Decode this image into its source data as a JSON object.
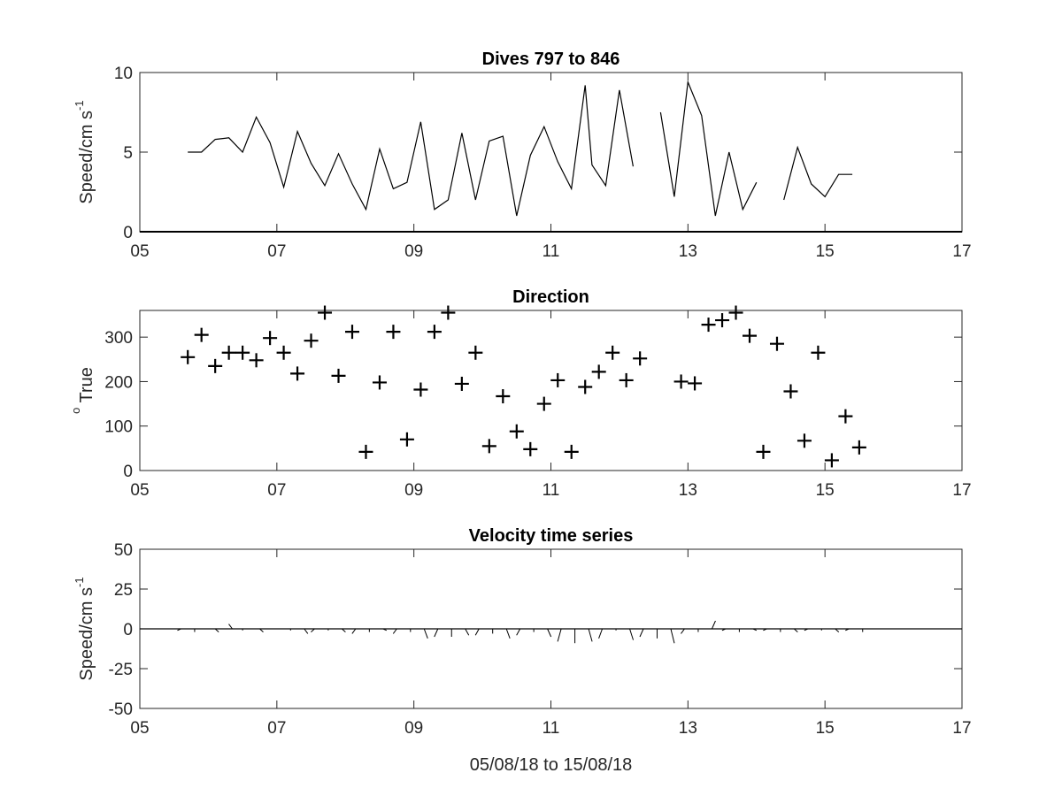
{
  "chart_data": [
    {
      "type": "line",
      "title": "Dives 797 to 846",
      "ylabel": "Speed/cm s",
      "ylabel_sup": "-1",
      "xlim": [
        5,
        17
      ],
      "ylim": [
        0,
        10
      ],
      "xticks": [
        "05",
        "07",
        "09",
        "11",
        "13",
        "15",
        "17"
      ],
      "yticks": [
        "0",
        "5",
        "10"
      ],
      "series": [
        {
          "segments": [
            [
              [
                5.7,
                5.0
              ],
              [
                5.9,
                5.0
              ],
              [
                6.1,
                5.8
              ],
              [
                6.3,
                5.9
              ],
              [
                6.5,
                5.0
              ],
              [
                6.7,
                7.2
              ],
              [
                6.9,
                5.6
              ],
              [
                7.1,
                2.8
              ],
              [
                7.3,
                6.3
              ],
              [
                7.5,
                4.3
              ],
              [
                7.7,
                2.9
              ],
              [
                7.9,
                4.9
              ],
              [
                8.1,
                3.0
              ],
              [
                8.3,
                1.4
              ],
              [
                8.5,
                5.2
              ],
              [
                8.7,
                2.7
              ],
              [
                8.9,
                3.1
              ],
              [
                9.1,
                6.9
              ],
              [
                9.3,
                1.4
              ],
              [
                9.5,
                2.0
              ],
              [
                9.7,
                6.2
              ],
              [
                9.9,
                2.0
              ],
              [
                10.1,
                5.7
              ],
              [
                10.3,
                6.0
              ],
              [
                10.5,
                1.0
              ],
              [
                10.7,
                4.8
              ],
              [
                10.9,
                6.6
              ],
              [
                11.1,
                4.4
              ],
              [
                11.3,
                2.7
              ],
              [
                11.5,
                9.2
              ],
              [
                11.6,
                4.2
              ],
              [
                11.8,
                2.9
              ],
              [
                12.0,
                8.9
              ],
              [
                12.2,
                4.1
              ]
            ],
            [
              [
                12.6,
                7.5
              ],
              [
                12.8,
                2.2
              ],
              [
                13.0,
                9.4
              ],
              [
                13.2,
                7.3
              ],
              [
                13.4,
                1.0
              ],
              [
                13.6,
                5.0
              ],
              [
                13.8,
                1.4
              ],
              [
                14.0,
                3.1
              ]
            ],
            [
              [
                14.4,
                2.0
              ],
              [
                14.6,
                5.3
              ],
              [
                14.8,
                3.0
              ],
              [
                15.0,
                2.2
              ],
              [
                15.2,
                3.6
              ],
              [
                15.4,
                3.6
              ]
            ]
          ]
        }
      ]
    },
    {
      "type": "scatter",
      "title": "Direction",
      "ylabel": "True",
      "ylabel_sup": "o",
      "xlim": [
        5,
        17
      ],
      "ylim": [
        0,
        360
      ],
      "xticks": [
        "05",
        "07",
        "09",
        "11",
        "13",
        "15",
        "17"
      ],
      "yticks": [
        "0",
        "100",
        "200",
        "300"
      ],
      "points": [
        [
          5.7,
          255
        ],
        [
          5.9,
          305
        ],
        [
          6.1,
          235
        ],
        [
          6.3,
          265
        ],
        [
          6.5,
          265
        ],
        [
          6.7,
          248
        ],
        [
          6.9,
          298
        ],
        [
          7.1,
          265
        ],
        [
          7.3,
          218
        ],
        [
          7.5,
          292
        ],
        [
          7.7,
          355
        ],
        [
          7.9,
          213
        ],
        [
          8.1,
          312
        ],
        [
          8.3,
          42
        ],
        [
          8.5,
          198
        ],
        [
          8.7,
          312
        ],
        [
          8.9,
          70
        ],
        [
          9.1,
          182
        ],
        [
          9.3,
          312
        ],
        [
          9.5,
          355
        ],
        [
          9.7,
          195
        ],
        [
          9.9,
          265
        ],
        [
          10.1,
          55
        ],
        [
          10.3,
          167
        ],
        [
          10.5,
          88
        ],
        [
          10.7,
          48
        ],
        [
          10.9,
          150
        ],
        [
          11.1,
          203
        ],
        [
          11.3,
          42
        ],
        [
          11.5,
          188
        ],
        [
          11.7,
          222
        ],
        [
          11.9,
          265
        ],
        [
          12.1,
          203
        ],
        [
          12.3,
          252
        ],
        [
          12.9,
          200
        ],
        [
          13.1,
          196
        ],
        [
          13.3,
          328
        ],
        [
          13.5,
          338
        ],
        [
          13.7,
          355
        ],
        [
          13.9,
          303
        ],
        [
          14.1,
          42
        ],
        [
          14.3,
          285
        ],
        [
          14.5,
          178
        ],
        [
          14.7,
          67
        ],
        [
          14.9,
          265
        ],
        [
          15.1,
          23
        ],
        [
          15.3,
          122
        ],
        [
          15.5,
          52
        ]
      ]
    },
    {
      "type": "line",
      "title": "Velocity time series",
      "ylabel": "Speed/cm s",
      "ylabel_sup": "-1",
      "xlabel": "05/08/18 to 15/08/18",
      "xlim": [
        5,
        17
      ],
      "ylim": [
        -50,
        50
      ],
      "xticks": [
        "05",
        "07",
        "09",
        "11",
        "13",
        "15",
        "17"
      ],
      "yticks": [
        "-50",
        "-25",
        "0",
        "25",
        "50"
      ],
      "baseline": 0,
      "vectors": [
        [
          5.6,
          -1
        ],
        [
          5.8,
          -2
        ],
        [
          6.1,
          -2
        ],
        [
          6.35,
          3
        ],
        [
          6.5,
          -1
        ],
        [
          6.75,
          -2
        ],
        [
          7.0,
          0
        ],
        [
          7.2,
          -1
        ],
        [
          7.4,
          -3
        ],
        [
          7.55,
          -2
        ],
        [
          7.75,
          -1
        ],
        [
          7.95,
          -2
        ],
        [
          8.15,
          -3
        ],
        [
          8.35,
          -2
        ],
        [
          8.55,
          -1
        ],
        [
          8.75,
          -3
        ],
        [
          8.95,
          -2
        ],
        [
          9.15,
          -6
        ],
        [
          9.35,
          -5
        ],
        [
          9.55,
          -5
        ],
        [
          9.75,
          -4
        ],
        [
          9.95,
          -4
        ],
        [
          10.15,
          -3
        ],
        [
          10.35,
          -6
        ],
        [
          10.55,
          -4
        ],
        [
          10.75,
          -2
        ],
        [
          10.95,
          -5
        ],
        [
          11.15,
          -8
        ],
        [
          11.35,
          -9
        ],
        [
          11.55,
          -8
        ],
        [
          11.75,
          -6
        ],
        [
          11.95,
          -1
        ],
        [
          12.15,
          -7
        ],
        [
          12.35,
          -5
        ],
        [
          12.55,
          -6
        ],
        [
          12.75,
          -9
        ],
        [
          12.95,
          -3
        ],
        [
          13.15,
          -2
        ],
        [
          13.35,
          5
        ],
        [
          13.55,
          -1
        ],
        [
          13.75,
          -2
        ],
        [
          13.95,
          -1
        ],
        [
          14.15,
          -1
        ],
        [
          14.35,
          -2
        ],
        [
          14.55,
          -2
        ],
        [
          14.75,
          -1
        ],
        [
          14.95,
          -1
        ],
        [
          15.15,
          -2
        ],
        [
          15.35,
          -1
        ],
        [
          15.55,
          -2
        ]
      ]
    }
  ]
}
